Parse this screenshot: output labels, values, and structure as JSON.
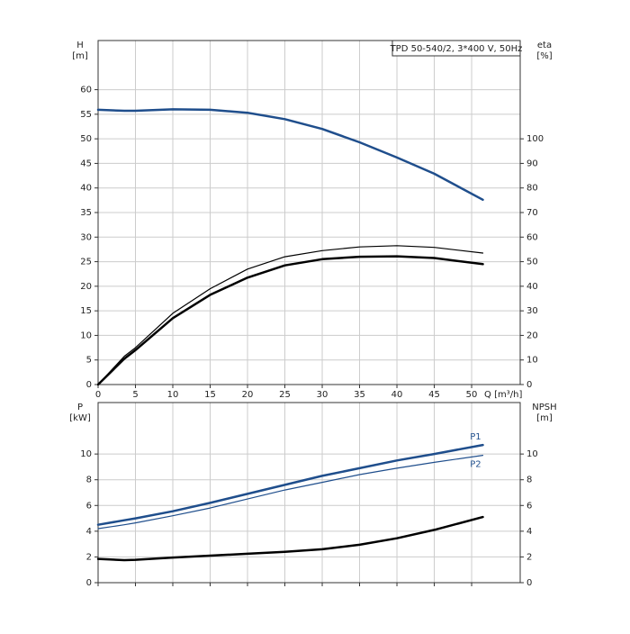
{
  "chart_data": [
    {
      "type": "line",
      "title": "TPD 50-540/2, 3*400 V, 50Hz",
      "ylabel": "H",
      "yunit": "[m]",
      "y2label": "eta",
      "y2unit": "[%]",
      "xlabel": "Q [m³/h]",
      "xlim": [
        0,
        56.5
      ],
      "xticks": [
        0,
        5,
        10,
        15,
        20,
        25,
        30,
        35,
        40,
        45,
        50
      ],
      "ylim": [
        0,
        70
      ],
      "yticks": [
        0,
        5,
        10,
        15,
        20,
        25,
        30,
        35,
        40,
        45,
        50,
        55,
        60
      ],
      "y2lim": [
        0,
        140
      ],
      "y2ticks": [
        0,
        10,
        20,
        30,
        40,
        50,
        60,
        70,
        80,
        90,
        100
      ],
      "grid": true,
      "x": [
        0,
        3.5,
        5,
        10,
        15,
        20,
        25,
        30,
        35,
        40,
        45,
        51.5
      ],
      "series": [
        {
          "color": "#1f4e8c",
          "line_width": 2.5,
          "values": [
            55.9,
            55.7,
            55.7,
            56,
            55.9,
            55.3,
            54,
            52,
            49.3,
            46.2,
            42.9,
            37.6
          ]
        },
        {
          "color": "#000000",
          "line_width": 1.2,
          "axis": "y2",
          "values": [
            0,
            11.5,
            15,
            29,
            39,
            47,
            52,
            54.5,
            56,
            56.5,
            55.8,
            53.5
          ]
        },
        {
          "color": "#000000",
          "line_width": 2.5,
          "axis": "y2",
          "values": [
            0,
            10.5,
            14,
            27,
            36.5,
            43.5,
            48.5,
            51,
            52,
            52.2,
            51.5,
            49
          ]
        }
      ]
    },
    {
      "type": "line",
      "ylabel": "P",
      "yunit": "[kW]",
      "y2label": "NPSH",
      "y2unit": "[m]",
      "xlim": [
        0,
        56.5
      ],
      "xticks": [
        0,
        5,
        10,
        15,
        20,
        25,
        30,
        35,
        40,
        45,
        50
      ],
      "ylim": [
        0,
        14
      ],
      "yticks": [
        0,
        2,
        4,
        6,
        8,
        10
      ],
      "y2lim": [
        0,
        14
      ],
      "y2ticks": [
        0,
        2,
        4,
        6,
        8,
        10
      ],
      "grid": true,
      "x": [
        0,
        3.5,
        5,
        10,
        15,
        20,
        25,
        30,
        35,
        40,
        45,
        51.5
      ],
      "series": [
        {
          "name": "P1",
          "color": "#1f4e8c",
          "line_width": 2.5,
          "values": [
            4.5,
            4.85,
            5.0,
            5.55,
            6.2,
            6.9,
            7.6,
            8.3,
            8.9,
            9.5,
            10.0,
            10.7
          ]
        },
        {
          "name": "P2",
          "color": "#1f4e8c",
          "line_width": 1.2,
          "values": [
            4.2,
            4.5,
            4.65,
            5.2,
            5.8,
            6.5,
            7.2,
            7.8,
            8.4,
            8.9,
            9.35,
            9.9
          ]
        },
        {
          "color": "#000000",
          "line_width": 2.5,
          "axis": "y2",
          "values": [
            1.85,
            1.75,
            1.78,
            1.95,
            2.1,
            2.25,
            2.4,
            2.6,
            2.95,
            3.45,
            4.1,
            5.1
          ]
        }
      ]
    }
  ]
}
